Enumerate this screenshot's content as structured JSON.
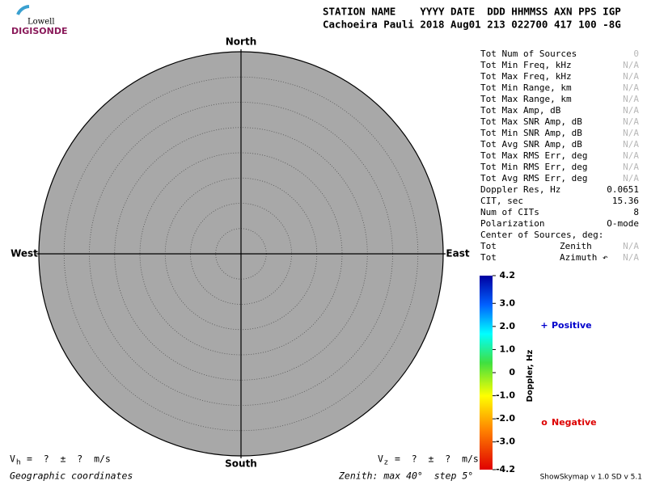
{
  "chart_data": {
    "type": "skymap",
    "logo": {
      "top": "Lowell",
      "bottom": "DIGISONDE"
    },
    "header": {
      "labels": "STATION NAME    YYYY DATE  DDD HHMMSS AXN PPS IGP",
      "values": "Cachoeira Pauli 2018 Aug01 213 022700 417 100 -8G"
    },
    "directions": {
      "north": "North",
      "south": "South",
      "east": "East",
      "west": "West"
    },
    "plot_color": "#a8a8a8",
    "zenith_lim": [
      0,
      40
    ],
    "zenith_ticks": [
      5,
      10,
      15,
      20,
      25,
      30,
      35
    ],
    "stats": [
      {
        "label": "Tot Num of Sources",
        "value": "0"
      },
      {
        "label": "Tot Min Freq, kHz",
        "value": "N/A"
      },
      {
        "label": "Tot Max Freq, kHz",
        "value": "N/A"
      },
      {
        "label": "Tot Min Range, km",
        "value": "N/A"
      },
      {
        "label": "Tot Max Range, km",
        "value": "N/A"
      },
      {
        "label": "Tot Max Amp, dB",
        "value": "N/A"
      },
      {
        "label": "Tot Max SNR Amp, dB",
        "value": "N/A"
      },
      {
        "label": "Tot Min SNR Amp, dB",
        "value": "N/A"
      },
      {
        "label": "Tot Avg SNR Amp, dB",
        "value": "N/A"
      },
      {
        "label": "Tot Max RMS Err, deg",
        "value": "N/A"
      },
      {
        "label": "Tot Min RMS Err, deg",
        "value": "N/A"
      },
      {
        "label": "Tot Avg RMS Err, deg",
        "value": "N/A"
      },
      {
        "label": "Doppler Res, Hz",
        "value": "0.0651"
      },
      {
        "label": "CIT, sec",
        "value": "15.36"
      },
      {
        "label": "Num of CITs",
        "value": "8"
      },
      {
        "label": "Polarization",
        "value": "O-mode"
      },
      {
        "label": "Center of Sources, deg:"
      },
      {
        "label": "Tot",
        "sub": "Zenith",
        "value": "N/A"
      },
      {
        "label": "Tot",
        "sub": "Azimuth ↶",
        "value": "N/A"
      }
    ],
    "colorbar": {
      "title": "Doppler, Hz",
      "ylim": [
        -4.2,
        4.2
      ],
      "yticks": [
        4.2,
        {
          "value": 3,
          "label": "3.0"
        },
        {
          "value": 2,
          "label": "2.0"
        },
        {
          "value": 1,
          "label": "1.0"
        },
        0,
        {
          "value": -1,
          "label": "-1.0"
        },
        {
          "value": -2,
          "label": "-2.0"
        },
        {
          "value": -3,
          "label": "-3.0"
        },
        -4.2
      ]
    },
    "legend": [
      {
        "symbol": "+",
        "name": "Positive",
        "color": "#0000cc"
      },
      {
        "symbol": "o",
        "name": "Negative",
        "color": "#dd0000"
      }
    ],
    "velocity": {
      "horizontal": {
        "symbol": "V",
        "sub": "h",
        "text": "=  ?  ±  ?  m/s"
      },
      "vertical": {
        "symbol": "V",
        "sub": "z",
        "text": "=  ?  ±  ?  m/s"
      }
    },
    "footer": {
      "coordinates": "Geographic coordinates",
      "zenith": "Zenith: max 40°  step 5°",
      "version": "ShowSkymap v 1.0  SD v 5.1"
    }
  }
}
